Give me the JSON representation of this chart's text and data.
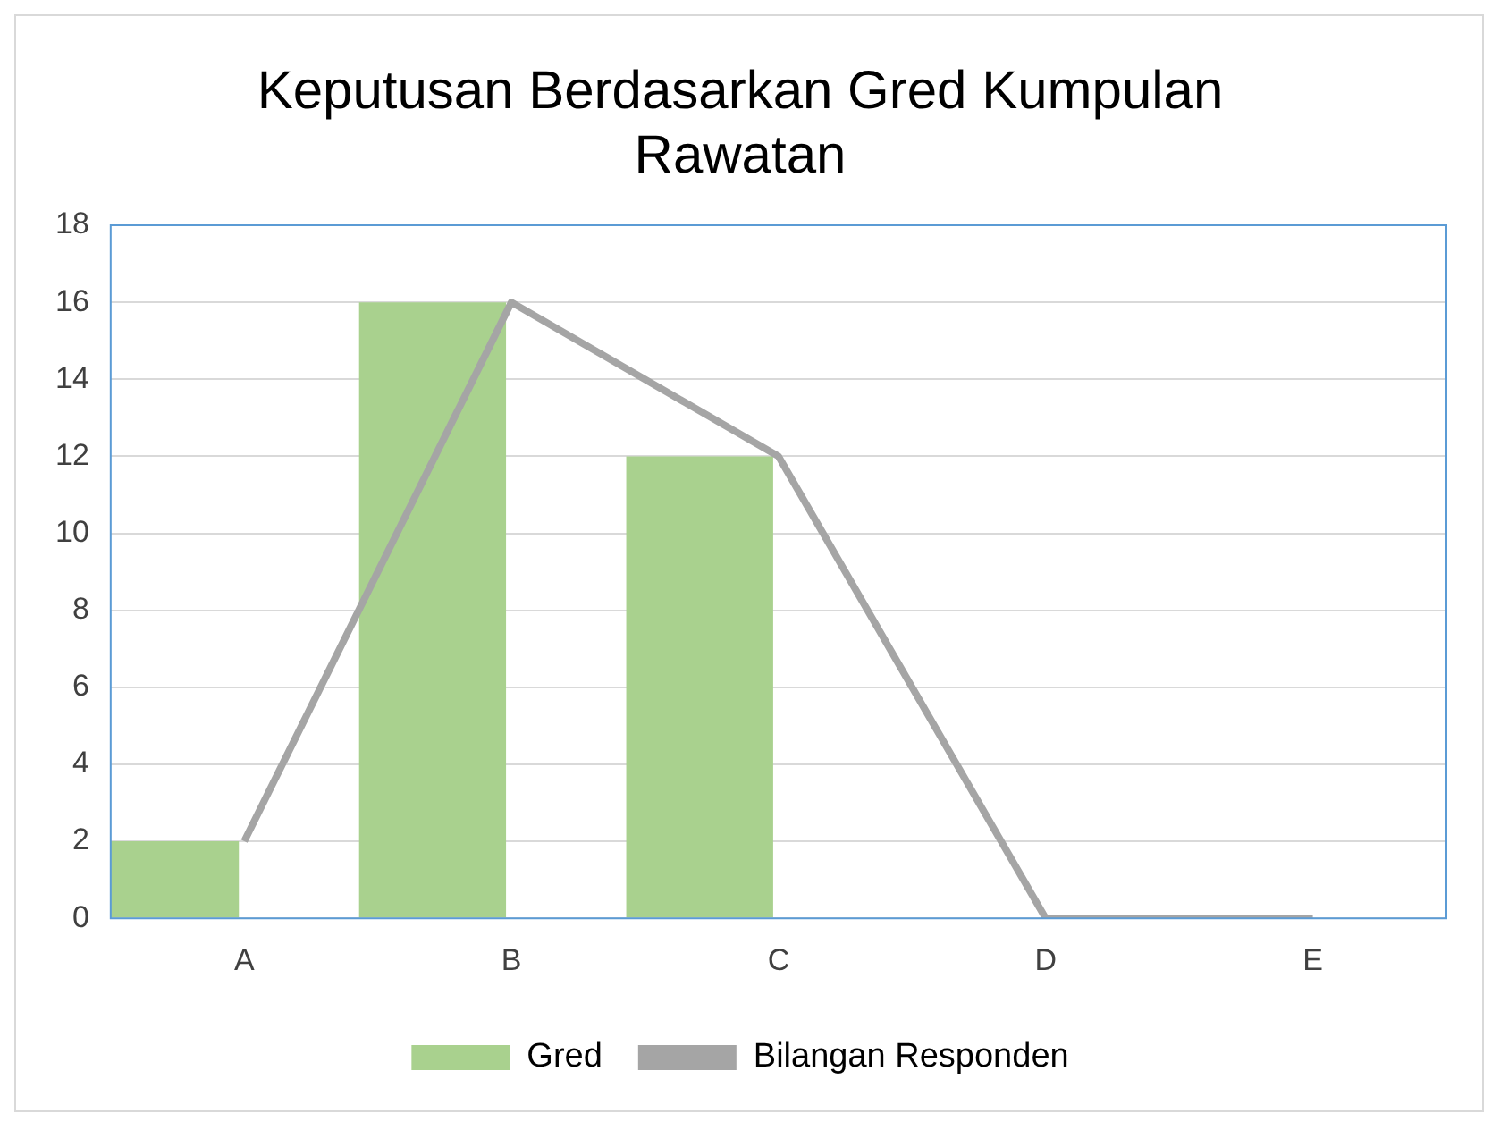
{
  "chart_data": {
    "type": "bar",
    "title": "Keputusan Berdasarkan Gred Kumpulan Rawatan",
    "categories": [
      "A",
      "B",
      "C",
      "D",
      "E"
    ],
    "series": [
      {
        "name": "Gred",
        "color": "#a9d18e",
        "values": [
          2,
          16,
          12,
          0,
          0
        ]
      },
      {
        "name": "Bilangan Responden",
        "type": "line",
        "color": "#a5a5a5",
        "values": [
          2,
          16,
          12,
          0,
          0
        ]
      }
    ],
    "ylim": [
      0,
      18
    ],
    "yticks": [
      0,
      2,
      4,
      6,
      8,
      10,
      12,
      14,
      16,
      18
    ],
    "grid": "y",
    "legend": "bottom",
    "marker": "none"
  }
}
